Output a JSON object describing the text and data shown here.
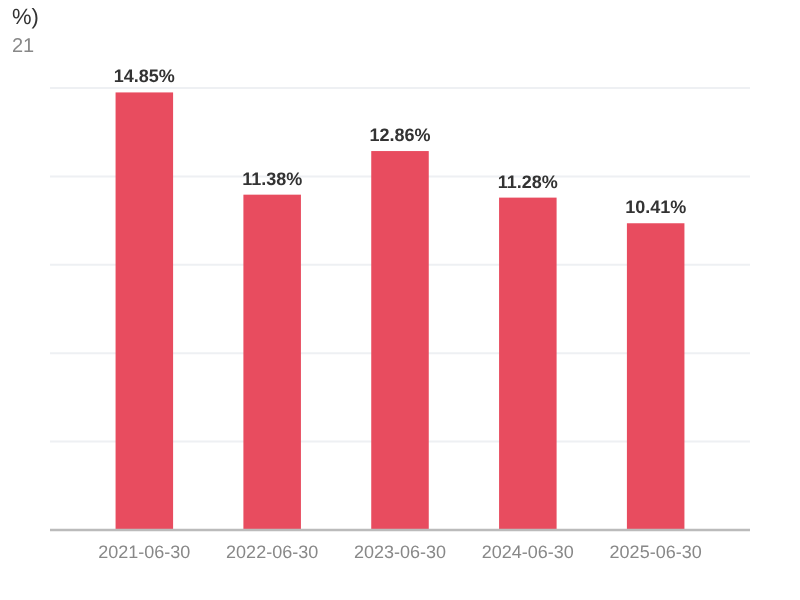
{
  "chart_data": {
    "type": "bar",
    "title": "%)",
    "subtitle": "21",
    "categories": [
      "2021-06-30",
      "2022-06-30",
      "2023-06-30",
      "2024-06-30",
      "2025-06-30"
    ],
    "values": [
      14.85,
      11.38,
      12.86,
      11.28,
      10.41
    ],
    "value_labels": [
      "14.85%",
      "11.38%",
      "12.86%",
      "11.28%",
      "10.41%"
    ],
    "color": "#e84c5f",
    "ylim": [
      0,
      15
    ],
    "yticks": [
      {
        "value": 0,
        "label": null
      },
      {
        "value": 3,
        "label": null
      },
      {
        "value": 6,
        "label": null
      },
      {
        "value": 9,
        "label": null
      },
      {
        "value": 12,
        "label": null
      },
      {
        "value": 15,
        "label": null
      }
    ],
    "grid": "y",
    "tick_labels": "x"
  }
}
